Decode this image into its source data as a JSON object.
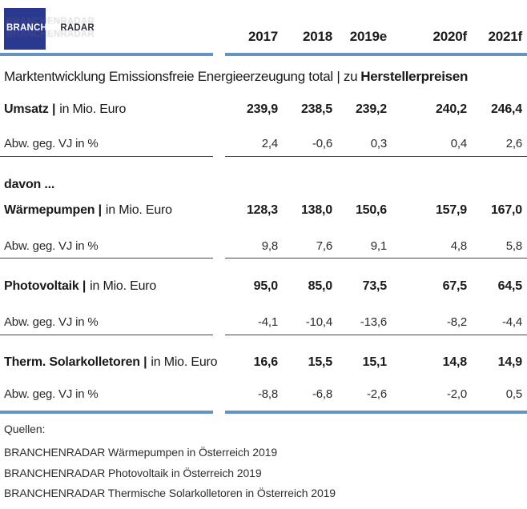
{
  "logo": {
    "primary": "BRANCHEN",
    "secondary": "RADAR"
  },
  "header": {
    "years": [
      "2017",
      "2018",
      "2019e",
      "2020f",
      "2021f"
    ]
  },
  "title": {
    "main": "Marktentwicklung Emissionsfreie Energieerzeugung total | zu",
    "bold": "Herstellerpreisen"
  },
  "rows": {
    "umsatz": {
      "label_bold": "Umsatz |",
      "label_rest": "in Mio. Euro",
      "values": [
        "239,9",
        "238,5",
        "239,2",
        "240,2",
        "246,4"
      ]
    },
    "umsatz_abw": {
      "label": "Abw. geg. VJ in %",
      "values": [
        "2,4",
        "-0,6",
        "0,3",
        "0,4",
        "2,6"
      ]
    },
    "davon": {
      "label": "davon ..."
    },
    "waermepumpen": {
      "label_bold": "Wärmepumpen |",
      "label_rest": "in Mio. Euro",
      "values": [
        "128,3",
        "138,0",
        "150,6",
        "157,9",
        "167,0"
      ]
    },
    "waermepumpen_abw": {
      "label": "Abw. geg. VJ in %",
      "values": [
        "9,8",
        "7,6",
        "9,1",
        "4,8",
        "5,8"
      ]
    },
    "photovoltaik": {
      "label_bold": "Photovoltaik |",
      "label_rest": "in Mio. Euro",
      "values": [
        "95,0",
        "85,0",
        "73,5",
        "67,5",
        "64,5"
      ]
    },
    "photovoltaik_abw": {
      "label": "Abw. geg. VJ in %",
      "values": [
        "-4,1",
        "-10,4",
        "-13,6",
        "-8,2",
        "-4,4"
      ]
    },
    "therm_solarkolletoren": {
      "label_bold": "Therm. Solarkolletoren |",
      "label_rest": "in Mio. Euro",
      "values": [
        "16,6",
        "15,5",
        "15,1",
        "14,8",
        "14,9"
      ]
    },
    "therm_solarkolletoren_abw": {
      "label": "Abw. geg. VJ in %",
      "values": [
        "-8,8",
        "-6,8",
        "-2,6",
        "-2,0",
        "0,5"
      ]
    }
  },
  "footer": {
    "heading": "Quellen:",
    "sources": [
      "BRANCHENRADAR Wärmepumpen in Österreich 2019",
      "BRANCHENRADAR Photovoltaik in Österreich 2019",
      "BRANCHENRADAR Thermische Solarkolletoren in Österreich 2019"
    ]
  },
  "colors": {
    "accent_blue": "#6593c5",
    "logo_navy": "#2b3890",
    "rule_grey": "#454545"
  }
}
